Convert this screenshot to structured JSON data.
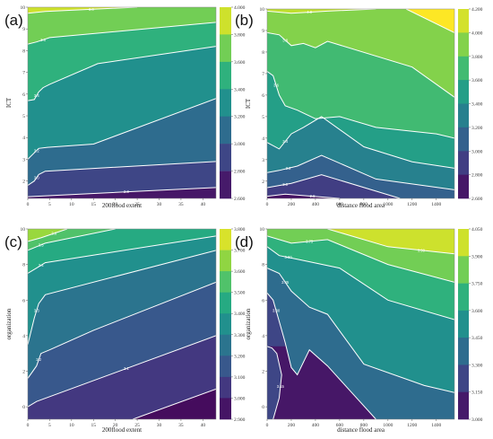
{
  "chart_data": [
    {
      "type": "contour",
      "panel_label": "(a)",
      "xlabel": "200flood extent",
      "ylabel": "ICT",
      "xlim": [
        0,
        43
      ],
      "ylim": [
        1.2,
        10
      ],
      "x_ticks": [
        0,
        5,
        10,
        15,
        20,
        25,
        30,
        35,
        40
      ],
      "y_ticks": [
        2,
        3,
        4,
        5,
        6,
        7,
        8,
        9,
        10
      ],
      "contour_levels": [
        2.8,
        3.0,
        3.2,
        3.4,
        3.6,
        3.8
      ],
      "contour_labels": [
        "2.8",
        "3.0",
        "3.2",
        "3.4",
        "3.6",
        "3.8"
      ],
      "colorbar_ticks": [
        "4.000",
        "3.800",
        "3.600",
        "3.400",
        "3.200",
        "3.000",
        "2.800",
        "2.600"
      ],
      "colorbar_range": [
        2.6,
        4.0
      ],
      "lines": [
        {
          "level": 2.8,
          "points": [
            [
              0,
              1.28
            ],
            [
              2,
              1.3
            ],
            [
              43,
              1.7
            ]
          ]
        },
        {
          "level": 3.0,
          "points": [
            [
              0,
              1.8
            ],
            [
              1.5,
              2.0
            ],
            [
              2.5,
              2.3
            ],
            [
              4,
              2.45
            ],
            [
              43,
              2.9
            ]
          ]
        },
        {
          "level": 3.2,
          "points": [
            [
              0,
              3.0
            ],
            [
              1.5,
              3.3
            ],
            [
              2.5,
              3.5
            ],
            [
              4.5,
              3.55
            ],
            [
              15,
              3.7
            ],
            [
              43,
              5.8
            ]
          ]
        },
        {
          "level": 3.4,
          "points": [
            [
              0,
              5.7
            ],
            [
              1.5,
              5.75
            ],
            [
              2.5,
              6.1
            ],
            [
              3.5,
              6.3
            ],
            [
              5,
              6.45
            ],
            [
              16,
              7.4
            ],
            [
              43,
              8.2
            ]
          ]
        },
        {
          "level": 3.6,
          "points": [
            [
              0,
              8.3
            ],
            [
              2,
              8.4
            ],
            [
              5,
              8.6
            ],
            [
              43,
              9.3
            ]
          ]
        },
        {
          "level": 3.8,
          "points": [
            [
              0,
              9.72
            ],
            [
              4,
              9.8
            ],
            [
              25,
              10.0
            ]
          ]
        }
      ]
    },
    {
      "type": "contour",
      "panel_label": "(b)",
      "xlabel": "distance flood area",
      "ylabel": "ICT",
      "xlim": [
        0,
        1550
      ],
      "ylim": [
        1.2,
        10
      ],
      "x_ticks": [
        0,
        200,
        400,
        600,
        800,
        1000,
        1200,
        1400
      ],
      "y_ticks": [
        2,
        3,
        4,
        5,
        6,
        7,
        8,
        9,
        10
      ],
      "contour_levels": [
        2.8,
        3.0,
        3.2,
        3.4,
        3.6,
        3.8,
        4.0
      ],
      "contour_labels": [
        "2.8",
        "3.0",
        "3.2",
        "3.4",
        "3.6",
        "3.8",
        "4.0"
      ],
      "colorbar_ticks": [
        "4.200",
        "4.000",
        "3.800",
        "3.600",
        "3.400",
        "3.200",
        "3.000",
        "2.800",
        "2.600"
      ],
      "colorbar_range": [
        2.6,
        4.2
      ],
      "lines": [
        {
          "level": 2.8,
          "points": [
            [
              0,
              1.3
            ],
            [
              150,
              1.4
            ],
            [
              600,
              1.2
            ]
          ]
        },
        {
          "level": 3.0,
          "points": [
            [
              0,
              1.7
            ],
            [
              100,
              1.8
            ],
            [
              200,
              1.9
            ],
            [
              450,
              2.3
            ],
            [
              1100,
              1.2
            ]
          ]
        },
        {
          "level": 3.2,
          "points": [
            [
              0,
              2.4
            ],
            [
              100,
              2.5
            ],
            [
              250,
              2.7
            ],
            [
              450,
              3.2
            ],
            [
              900,
              2.1
            ],
            [
              1550,
              1.6
            ]
          ]
        },
        {
          "level": 3.4,
          "points": [
            [
              0,
              3.8
            ],
            [
              100,
              3.5
            ],
            [
              200,
              4.2
            ],
            [
              300,
              4.5
            ],
            [
              450,
              5.0
            ],
            [
              800,
              3.6
            ],
            [
              1200,
              2.9
            ],
            [
              1550,
              2.6
            ]
          ]
        },
        {
          "level": 3.6,
          "points": [
            [
              0,
              7.1
            ],
            [
              50,
              6.9
            ],
            [
              100,
              6.0
            ],
            [
              150,
              5.5
            ],
            [
              250,
              5.3
            ],
            [
              400,
              4.9
            ],
            [
              600,
              5.0
            ],
            [
              900,
              4.5
            ],
            [
              1400,
              4.2
            ],
            [
              1550,
              4.0
            ]
          ]
        },
        {
          "level": 3.8,
          "points": [
            [
              0,
              8.9
            ],
            [
              100,
              8.8
            ],
            [
              200,
              8.3
            ],
            [
              300,
              8.4
            ],
            [
              400,
              8.2
            ],
            [
              500,
              8.5
            ],
            [
              1200,
              7.3
            ],
            [
              1550,
              5.9
            ]
          ]
        },
        {
          "level": 4.0,
          "points": [
            [
              0,
              9.9
            ],
            [
              200,
              9.8
            ],
            [
              500,
              9.9
            ],
            [
              900,
              10.0
            ]
          ]
        },
        {
          "level": 4.1,
          "points": [
            [
              1150,
              10.0
            ],
            [
              1550,
              8.9
            ]
          ]
        }
      ]
    },
    {
      "type": "contour",
      "panel_label": "(c)",
      "xlabel": "200flood extent",
      "ylabel": "organization",
      "xlim": [
        0,
        43
      ],
      "ylim": [
        -0.7,
        10
      ],
      "x_ticks": [
        0,
        5,
        10,
        15,
        20,
        25,
        30,
        35,
        40
      ],
      "y_ticks": [
        0,
        2,
        4,
        6,
        8,
        10
      ],
      "contour_levels": [
        3.1,
        3.2,
        3.3,
        3.4,
        3.5,
        3.6
      ],
      "contour_labels": [
        "3.1",
        "3.2",
        "3.3",
        "3.4",
        "3.5",
        "3.6"
      ],
      "colorbar_ticks": [
        "3.800",
        "3.700",
        "3.600",
        "3.500",
        "3.400",
        "3.300",
        "3.200",
        "3.100",
        "3.000",
        "2.900"
      ],
      "colorbar_range": [
        2.9,
        3.8
      ],
      "lines": [
        {
          "level": 3.0,
          "points": [
            [
              24,
              -0.7
            ],
            [
              43,
              1.0
            ]
          ]
        },
        {
          "level": 3.1,
          "points": [
            [
              0,
              0.0
            ],
            [
              2,
              0.3
            ],
            [
              43,
              4.0
            ]
          ]
        },
        {
          "level": 3.2,
          "points": [
            [
              0,
              1.6
            ],
            [
              2,
              2.3
            ],
            [
              3,
              3.0
            ],
            [
              5,
              3.2
            ],
            [
              15,
              4.3
            ],
            [
              43,
              7.0
            ]
          ]
        },
        {
          "level": 3.3,
          "points": [
            [
              0,
              3.5
            ],
            [
              1.5,
              5.0
            ],
            [
              2.5,
              5.8
            ],
            [
              4,
              6.3
            ],
            [
              43,
              8.8
            ]
          ]
        },
        {
          "level": 3.4,
          "points": [
            [
              0,
              7.5
            ],
            [
              2,
              7.8
            ],
            [
              4,
              8.1
            ],
            [
              43,
              9.6
            ]
          ]
        },
        {
          "level": 3.5,
          "points": [
            [
              0,
              8.8
            ],
            [
              2,
              9.0
            ],
            [
              4,
              9.2
            ],
            [
              20,
              10.0
            ]
          ]
        },
        {
          "level": 3.6,
          "points": [
            [
              0,
              9.3
            ],
            [
              3,
              9.5
            ],
            [
              9,
              10.0
            ]
          ]
        }
      ]
    },
    {
      "type": "contour",
      "panel_label": "(d)",
      "xlabel": "distance flood area",
      "ylabel": "organization",
      "xlim": [
        0,
        1550
      ],
      "ylim": [
        -0.7,
        10
      ],
      "x_ticks": [
        0,
        200,
        400,
        600,
        800,
        1000,
        1200,
        1400
      ],
      "y_ticks": [
        0,
        2,
        4,
        6,
        8,
        10
      ],
      "contour_levels": [
        3.15,
        3.3,
        3.45,
        3.6,
        3.75,
        3.9
      ],
      "contour_labels": [
        "3.15",
        "3.30",
        "3.45",
        "3.60",
        "3.75",
        "3.90"
      ],
      "colorbar_ticks": [
        "4.050",
        "3.900",
        "3.750",
        "3.600",
        "3.450",
        "3.300",
        "3.150",
        "3.000"
      ],
      "colorbar_range": [
        3.0,
        4.05
      ],
      "lines": [
        {
          "level": 3.15,
          "points": [
            [
              50,
              -0.7
            ],
            [
              100,
              0.5
            ],
            [
              120,
              1.8
            ],
            [
              80,
              3.0
            ],
            [
              40,
              3.3
            ],
            [
              0,
              3.4
            ]
          ]
        },
        {
          "level": 3.3,
          "points": [
            [
              0,
              6.4
            ],
            [
              50,
              6.0
            ],
            [
              100,
              4.8
            ],
            [
              150,
              3.6
            ],
            [
              200,
              2.2
            ],
            [
              250,
              1.8
            ],
            [
              350,
              3.2
            ],
            [
              500,
              2.3
            ],
            [
              700,
              0.8
            ],
            [
              900,
              -0.7
            ]
          ]
        },
        {
          "level": 3.45,
          "points": [
            [
              0,
              7.8
            ],
            [
              100,
              7.5
            ],
            [
              200,
              6.5
            ],
            [
              350,
              5.6
            ],
            [
              500,
              5.2
            ],
            [
              800,
              2.4
            ],
            [
              1300,
              1.2
            ],
            [
              1550,
              0.8
            ]
          ]
        },
        {
          "level": 3.6,
          "points": [
            [
              0,
              9.0
            ],
            [
              100,
              8.5
            ],
            [
              250,
              8.3
            ],
            [
              600,
              7.8
            ],
            [
              1000,
              6.0
            ],
            [
              1550,
              4.9
            ]
          ]
        },
        {
          "level": 3.75,
          "points": [
            [
              0,
              9.6
            ],
            [
              200,
              9.2
            ],
            [
              500,
              9.4
            ],
            [
              1000,
              8.0
            ],
            [
              1550,
              7.0
            ]
          ]
        },
        {
          "level": 3.9,
          "points": [
            [
              500,
              10.0
            ],
            [
              1000,
              9.0
            ],
            [
              1550,
              8.6
            ]
          ]
        }
      ]
    }
  ]
}
